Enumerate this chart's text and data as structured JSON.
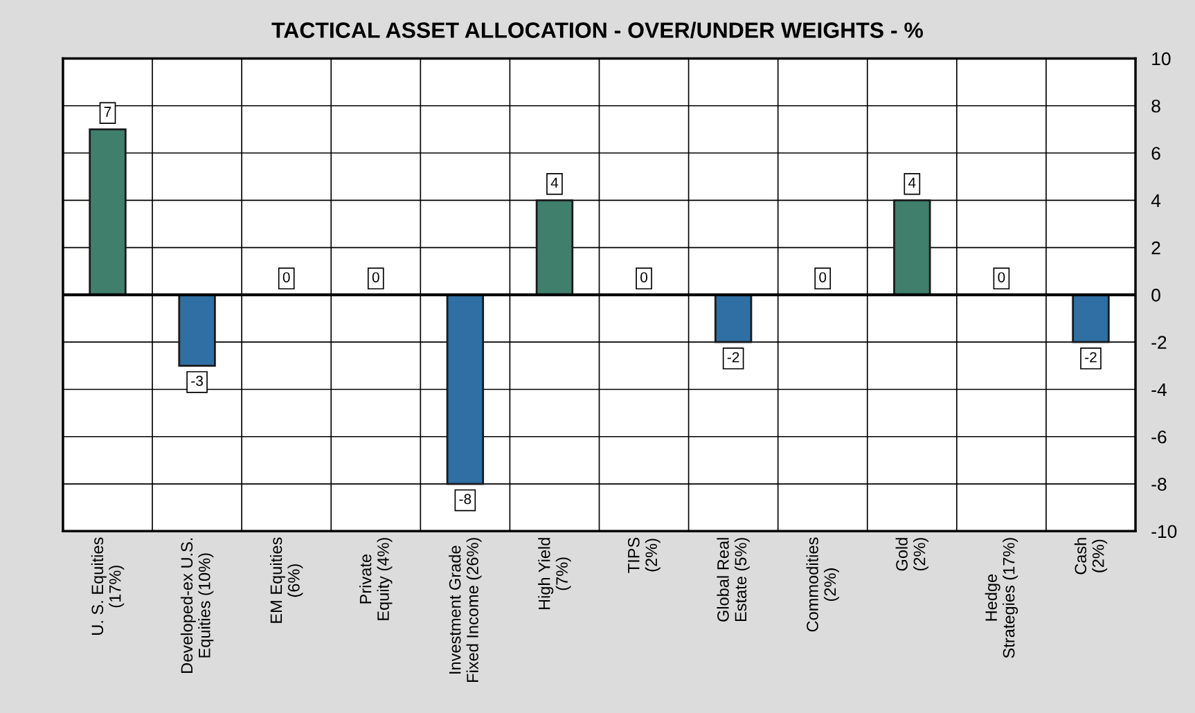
{
  "chart_data": {
    "type": "bar",
    "title": "TACTICAL ASSET ALLOCATION - OVER/UNDER WEIGHTS - %",
    "categories": [
      "U. S. Equities\n(17%)",
      "Developed-ex U.S.\nEquities (10%)",
      "EM Equities\n(6%)",
      "Private\nEquity (4%)",
      "Investment Grade\nFixed Income (26%)",
      "High Yield\n(7%)",
      "TIPS\n(2%)",
      "Global Real\nEstate (5%)",
      "Commodities\n(2%)",
      "Gold\n(2%)",
      "Hedge\nStrategies (17%)",
      "Cash\n(2%)"
    ],
    "values": [
      7,
      -3,
      0,
      0,
      -8,
      4,
      0,
      -2,
      0,
      4,
      0,
      -2
    ],
    "colors": [
      "#3f7f6c",
      "#2f6fa3",
      null,
      null,
      "#2f6fa3",
      "#3f7f6c",
      null,
      "#2f6fa3",
      null,
      "#3f7f6c",
      null,
      "#2f6fa3"
    ],
    "ylim": [
      -10,
      10
    ],
    "yticks": [
      -10,
      -8,
      -6,
      -4,
      -2,
      0,
      2,
      4,
      6,
      8,
      10
    ],
    "grid": true,
    "data_labels": true
  }
}
